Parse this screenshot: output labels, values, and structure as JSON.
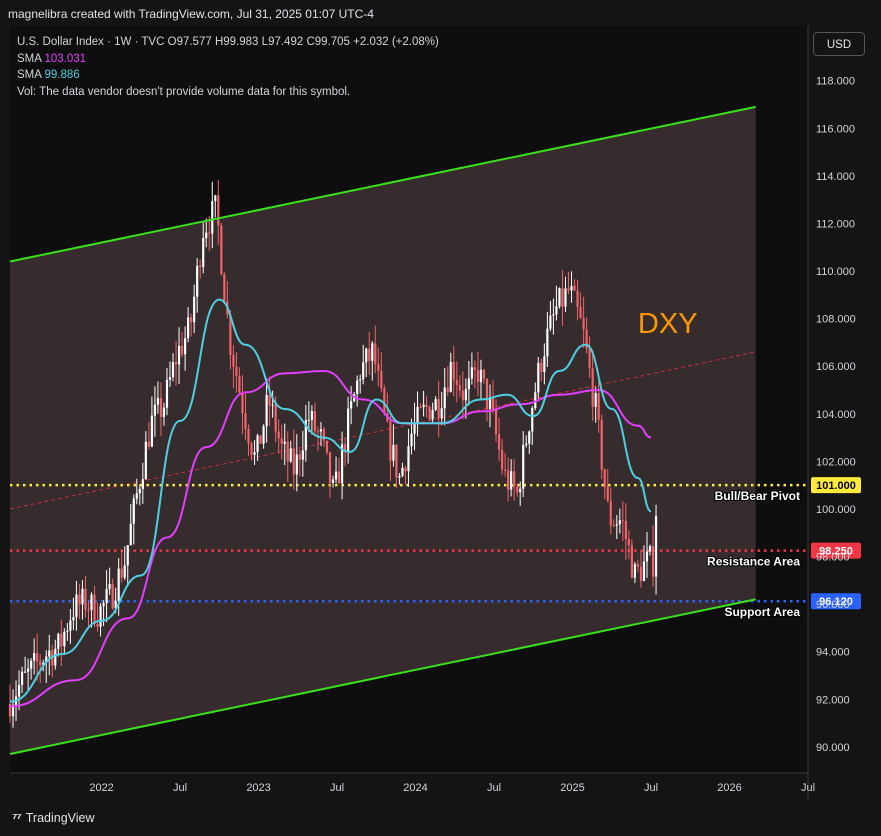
{
  "header": {
    "credit": "magnelibra created with TradingView.com, Jul 31, 2025 01:07 UTC-4"
  },
  "legend": {
    "symbol_line_prefix": "U.S. Dollar Index · 1W · TVC",
    "ohlc": {
      "o": "97.577",
      "h": "99.983",
      "l": "97.492",
      "c": "99.705"
    },
    "change": "+2.032 (+2.08%)",
    "sma1_label": "SMA",
    "sma1_value": "103.031",
    "sma2_label": "SMA",
    "sma2_value": "99.886",
    "vol_text": "Vol: The data vendor doesn't provide volume data for this symbol."
  },
  "currency_button": "USD",
  "footer": {
    "brand": "TradingView"
  },
  "colors": {
    "background": "#141414",
    "channel_fill": "#3d3032",
    "channel_line": "#39e01c",
    "candle_up": "#ffffff",
    "candle_down": "#f1646a",
    "sma_long": "#e040fb",
    "sma_short": "#4dd0e1",
    "pivot": "#ffeb3b",
    "resistance": "#f23645",
    "support": "#2962ff",
    "dxy_text": "#ff9800"
  },
  "chart_data": {
    "type": "candlestick",
    "title": "DXY",
    "ylim": [
      88.9,
      120.3
    ],
    "y_ticks": [
      "90.000",
      "92.000",
      "94.000",
      "96.000",
      "98.000",
      "100.000",
      "102.000",
      "104.000",
      "106.000",
      "108.000",
      "110.000",
      "112.000",
      "114.000",
      "116.000",
      "118.000"
    ],
    "x_ticks": [
      "2022",
      "Jul",
      "2023",
      "Jul",
      "2024",
      "Jul",
      "2025",
      "Jul",
      "2026",
      "Jul"
    ],
    "x_tick_dates": [
      "2022-01",
      "2022-07",
      "2023-01",
      "2023-07",
      "2024-01",
      "2024-07",
      "2025-01",
      "2025-07",
      "2026-01",
      "2026-07"
    ],
    "x_range": [
      "2021-06",
      "2026-07"
    ],
    "horizontal_levels": [
      {
        "name": "Bull/Bear Pivot",
        "price": 101.0,
        "badge": "101.000",
        "color": "#ffeb3b"
      },
      {
        "name": "Resistance Area",
        "price": 98.25,
        "badge": "98.250",
        "color": "#f23645"
      },
      {
        "name": "Support Area",
        "price": 96.12,
        "badge": "96.120",
        "color": "#2962ff"
      }
    ],
    "channel": {
      "upper_start": {
        "date": "2021-06",
        "price": 110.4
      },
      "upper_end": {
        "date": "2026-03",
        "price": 116.9
      },
      "lower_start": {
        "date": "2021-06",
        "price": 89.7
      },
      "lower_end": {
        "date": "2026-03",
        "price": 96.2
      },
      "mid_start": {
        "date": "2021-06",
        "price": 100.0
      },
      "mid_end": {
        "date": "2026-03",
        "price": 106.6
      }
    },
    "price_path": [
      [
        "2021-06",
        91.8
      ],
      [
        "2021-07",
        92.6
      ],
      [
        "2021-08",
        93.3
      ],
      [
        "2021-09",
        93.9
      ],
      [
        "2021-10",
        94.2
      ],
      [
        "2021-11",
        95.8
      ],
      [
        "2021-12",
        96.1
      ],
      [
        "2022-01",
        95.6
      ],
      [
        "2022-02",
        96.4
      ],
      [
        "2022-03",
        97.8
      ],
      [
        "2022-04",
        100.8
      ],
      [
        "2022-05",
        103.6
      ],
      [
        "2022-06",
        104.4
      ],
      [
        "2022-07",
        106.5
      ],
      [
        "2022-08",
        107.6
      ],
      [
        "2022-09",
        111.8
      ],
      [
        "2022-10",
        112.6
      ],
      [
        "2022-11",
        107.2
      ],
      [
        "2022-12",
        104.4
      ],
      [
        "2023-01",
        102.0
      ],
      [
        "2023-02",
        104.6
      ],
      [
        "2023-03",
        102.5
      ],
      [
        "2023-04",
        101.6
      ],
      [
        "2023-05",
        103.9
      ],
      [
        "2023-06",
        102.9
      ],
      [
        "2023-07",
        100.5
      ],
      [
        "2023-08",
        103.4
      ],
      [
        "2023-09",
        105.8
      ],
      [
        "2023-10",
        106.6
      ],
      [
        "2023-11",
        103.2
      ],
      [
        "2023-12",
        101.3
      ],
      [
        "2024-01",
        103.3
      ],
      [
        "2024-02",
        104.2
      ],
      [
        "2024-03",
        104.5
      ],
      [
        "2024-04",
        106.1
      ],
      [
        "2024-05",
        104.7
      ],
      [
        "2024-06",
        105.8
      ],
      [
        "2024-07",
        104.1
      ],
      [
        "2024-08",
        101.4
      ],
      [
        "2024-09",
        100.6
      ],
      [
        "2024-10",
        104.0
      ],
      [
        "2024-11",
        106.7
      ],
      [
        "2024-12",
        108.4
      ],
      [
        "2025-01",
        109.2
      ],
      [
        "2025-02",
        107.5
      ],
      [
        "2025-03",
        104.2
      ],
      [
        "2025-04",
        99.6
      ],
      [
        "2025-05",
        99.5
      ],
      [
        "2025-06",
        97.2
      ],
      [
        "2025-07",
        97.8
      ]
    ],
    "last_close": 99.705,
    "sma_long_path": [
      [
        "2021-06",
        91.7
      ],
      [
        "2021-11",
        92.8
      ],
      [
        "2022-03",
        95.4
      ],
      [
        "2022-06",
        98.8
      ],
      [
        "2022-09",
        102.6
      ],
      [
        "2022-12",
        104.9
      ],
      [
        "2023-03",
        105.7
      ],
      [
        "2023-06",
        105.8
      ],
      [
        "2023-09",
        104.6
      ],
      [
        "2023-12",
        103.6
      ],
      [
        "2024-03",
        103.6
      ],
      [
        "2024-06",
        104.1
      ],
      [
        "2024-09",
        104.4
      ],
      [
        "2024-12",
        104.8
      ],
      [
        "2025-03",
        105.0
      ],
      [
        "2025-06",
        103.5
      ],
      [
        "2025-07",
        103.0
      ]
    ],
    "sma_short_path": [
      [
        "2021-06",
        91.9
      ],
      [
        "2021-10",
        93.9
      ],
      [
        "2022-01",
        95.3
      ],
      [
        "2022-04",
        97.2
      ],
      [
        "2022-07",
        103.7
      ],
      [
        "2022-10",
        108.8
      ],
      [
        "2022-12",
        106.9
      ],
      [
        "2023-03",
        104.2
      ],
      [
        "2023-06",
        103.0
      ],
      [
        "2023-08",
        102.4
      ],
      [
        "2023-10",
        104.6
      ],
      [
        "2023-12",
        103.6
      ],
      [
        "2024-03",
        103.6
      ],
      [
        "2024-06",
        104.6
      ],
      [
        "2024-08",
        104.8
      ],
      [
        "2024-10",
        103.9
      ],
      [
        "2024-12",
        105.8
      ],
      [
        "2025-02",
        106.9
      ],
      [
        "2025-04",
        104.2
      ],
      [
        "2025-06",
        101.3
      ],
      [
        "2025-07",
        99.9
      ]
    ],
    "annotations": [
      "DXY",
      "Bull/Bear Pivot",
      "Resistance Area",
      "Support Area"
    ],
    "grid": false,
    "legend_position": "top-left"
  }
}
